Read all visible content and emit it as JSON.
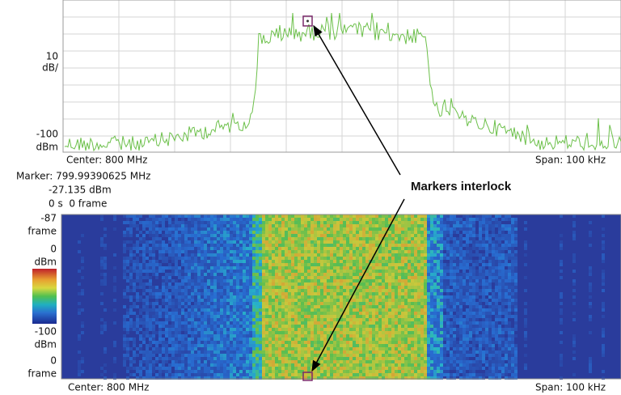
{
  "spectrum": {
    "scale_top": "10",
    "scale_top_unit": "dB/",
    "scale_bottom": "-100",
    "scale_bottom_unit": "dBm",
    "center": "Center: 800 MHz",
    "span": "Span: 100 kHz"
  },
  "marker": {
    "frequency": "Marker: 799.99390625 MHz",
    "level": "-27.135 dBm",
    "time": "0 s  0 frame"
  },
  "callout": "Markers interlock",
  "spectrogram": {
    "top_frame": "-87",
    "top_frame_unit": "frame",
    "top_level": "0",
    "top_level_unit": "dBm",
    "bottom_level": "-100",
    "bottom_level_unit": "dBm",
    "bottom_frame": "0",
    "bottom_frame_unit": "frame",
    "center": "Center: 800 MHz",
    "span": "Span: 100 kHz"
  }
}
